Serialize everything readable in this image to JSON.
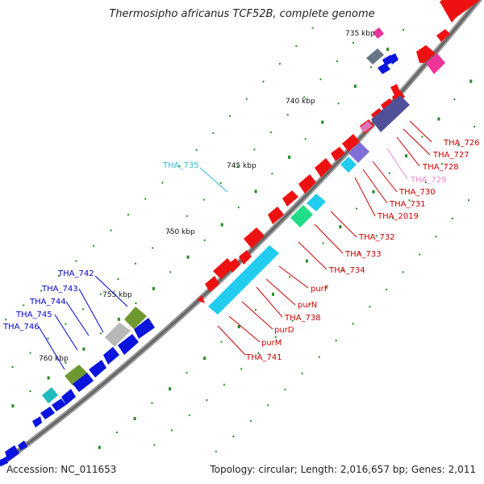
{
  "title": "Thermosipho africanus TCF52B, complete genome",
  "footer": {
    "accession": "Accession: NC_011653",
    "summary": "Topology: circular; Length: 2,016,657 bp; Genes: 2,011"
  },
  "scale_labels": [
    "735 kbp",
    "740 kbp",
    "745 kbp",
    "750 kbp",
    "755 kbp",
    "760 kbp"
  ],
  "gene_labels": {
    "THA_726": "THA_726",
    "THA_727": "THA_727",
    "THA_728": "THA_728",
    "THA_729": "THA_729",
    "THA_730": "THA_730",
    "THA_731": "THA_731",
    "THA_2019": "THA_2019",
    "THA_732": "THA_732",
    "THA_733": "THA_733",
    "THA_734": "THA_734",
    "purF": "purF",
    "purN": "purN",
    "THA_738": "THA_738",
    "purD": "purD",
    "purM": "purM",
    "THA_741": "THA_741",
    "THA_735": "THA_735",
    "THA_742": "THA_742",
    "THA_743": "THA_743",
    "THA_744": "THA_744",
    "THA_745": "THA_745",
    "THA_746": "THA_746"
  },
  "colors": {
    "backbone": "#777777",
    "forward_cds": "#ee1111",
    "reverse_cds": "#0a14dd",
    "cyan_feature": "#22ccee",
    "green_feature": "#22dd88",
    "navy_feature": "#505099",
    "purple_feature": "#7f6fd6",
    "magenta_feature": "#ee3399",
    "olive_feature": "#6f9930",
    "gray_feature": "#b8b8b8",
    "steel_feature": "#667788",
    "teal_feature": "#22bbbb",
    "tick": "#228b22",
    "label_red": "#cc0000",
    "label_pink": "#ee88cc",
    "label_cyan": "#33bbdd",
    "label_blue": "#0000cc"
  }
}
